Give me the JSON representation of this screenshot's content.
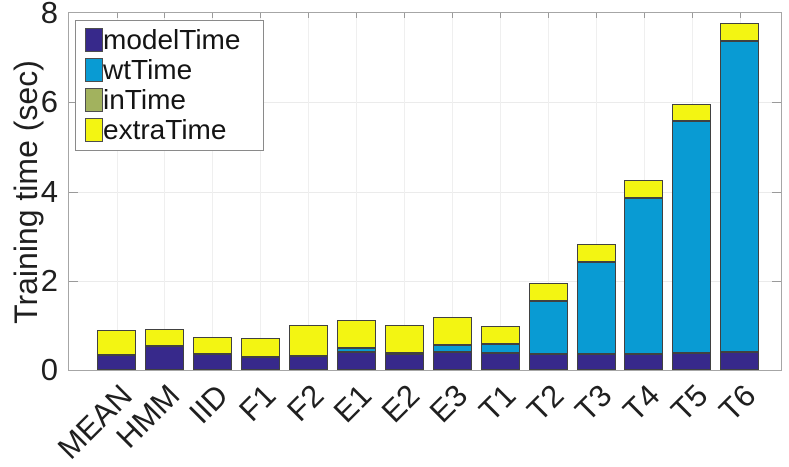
{
  "chart_data": {
    "type": "bar",
    "stacked": true,
    "title": "",
    "ylabel": "Training time (sec)",
    "xlabel": "",
    "ylim": [
      0,
      8
    ],
    "yticks": [
      0,
      2,
      4,
      6,
      8
    ],
    "grid": true,
    "legend_position": "top-left",
    "categories": [
      "MEAN",
      "HMM",
      "IID",
      "F1",
      "F2",
      "E1",
      "E2",
      "E3",
      "T1",
      "T2",
      "T3",
      "T4",
      "T5",
      "T6"
    ],
    "series": [
      {
        "name": "modelTime",
        "color": "#37298b",
        "values": [
          0.34,
          0.54,
          0.35,
          0.3,
          0.31,
          0.4,
          0.37,
          0.4,
          0.38,
          0.36,
          0.36,
          0.37,
          0.39,
          0.41
        ]
      },
      {
        "name": "wtTime",
        "color": "#099bd3",
        "values": [
          0,
          0,
          0,
          0,
          0,
          0.09,
          0.02,
          0.17,
          0.21,
          1.19,
          2.06,
          3.49,
          5.2,
          6.96
        ]
      },
      {
        "name": "inTime",
        "color": "#a2b25e",
        "values": [
          0,
          0,
          0,
          0,
          0,
          0,
          0,
          0,
          0,
          0,
          0,
          0,
          0,
          0
        ]
      },
      {
        "name": "extraTime",
        "color": "#f3f512",
        "values": [
          0.55,
          0.39,
          0.39,
          0.41,
          0.71,
          0.63,
          0.62,
          0.61,
          0.39,
          0.4,
          0.4,
          0.39,
          0.38,
          0.41
        ]
      }
    ]
  }
}
